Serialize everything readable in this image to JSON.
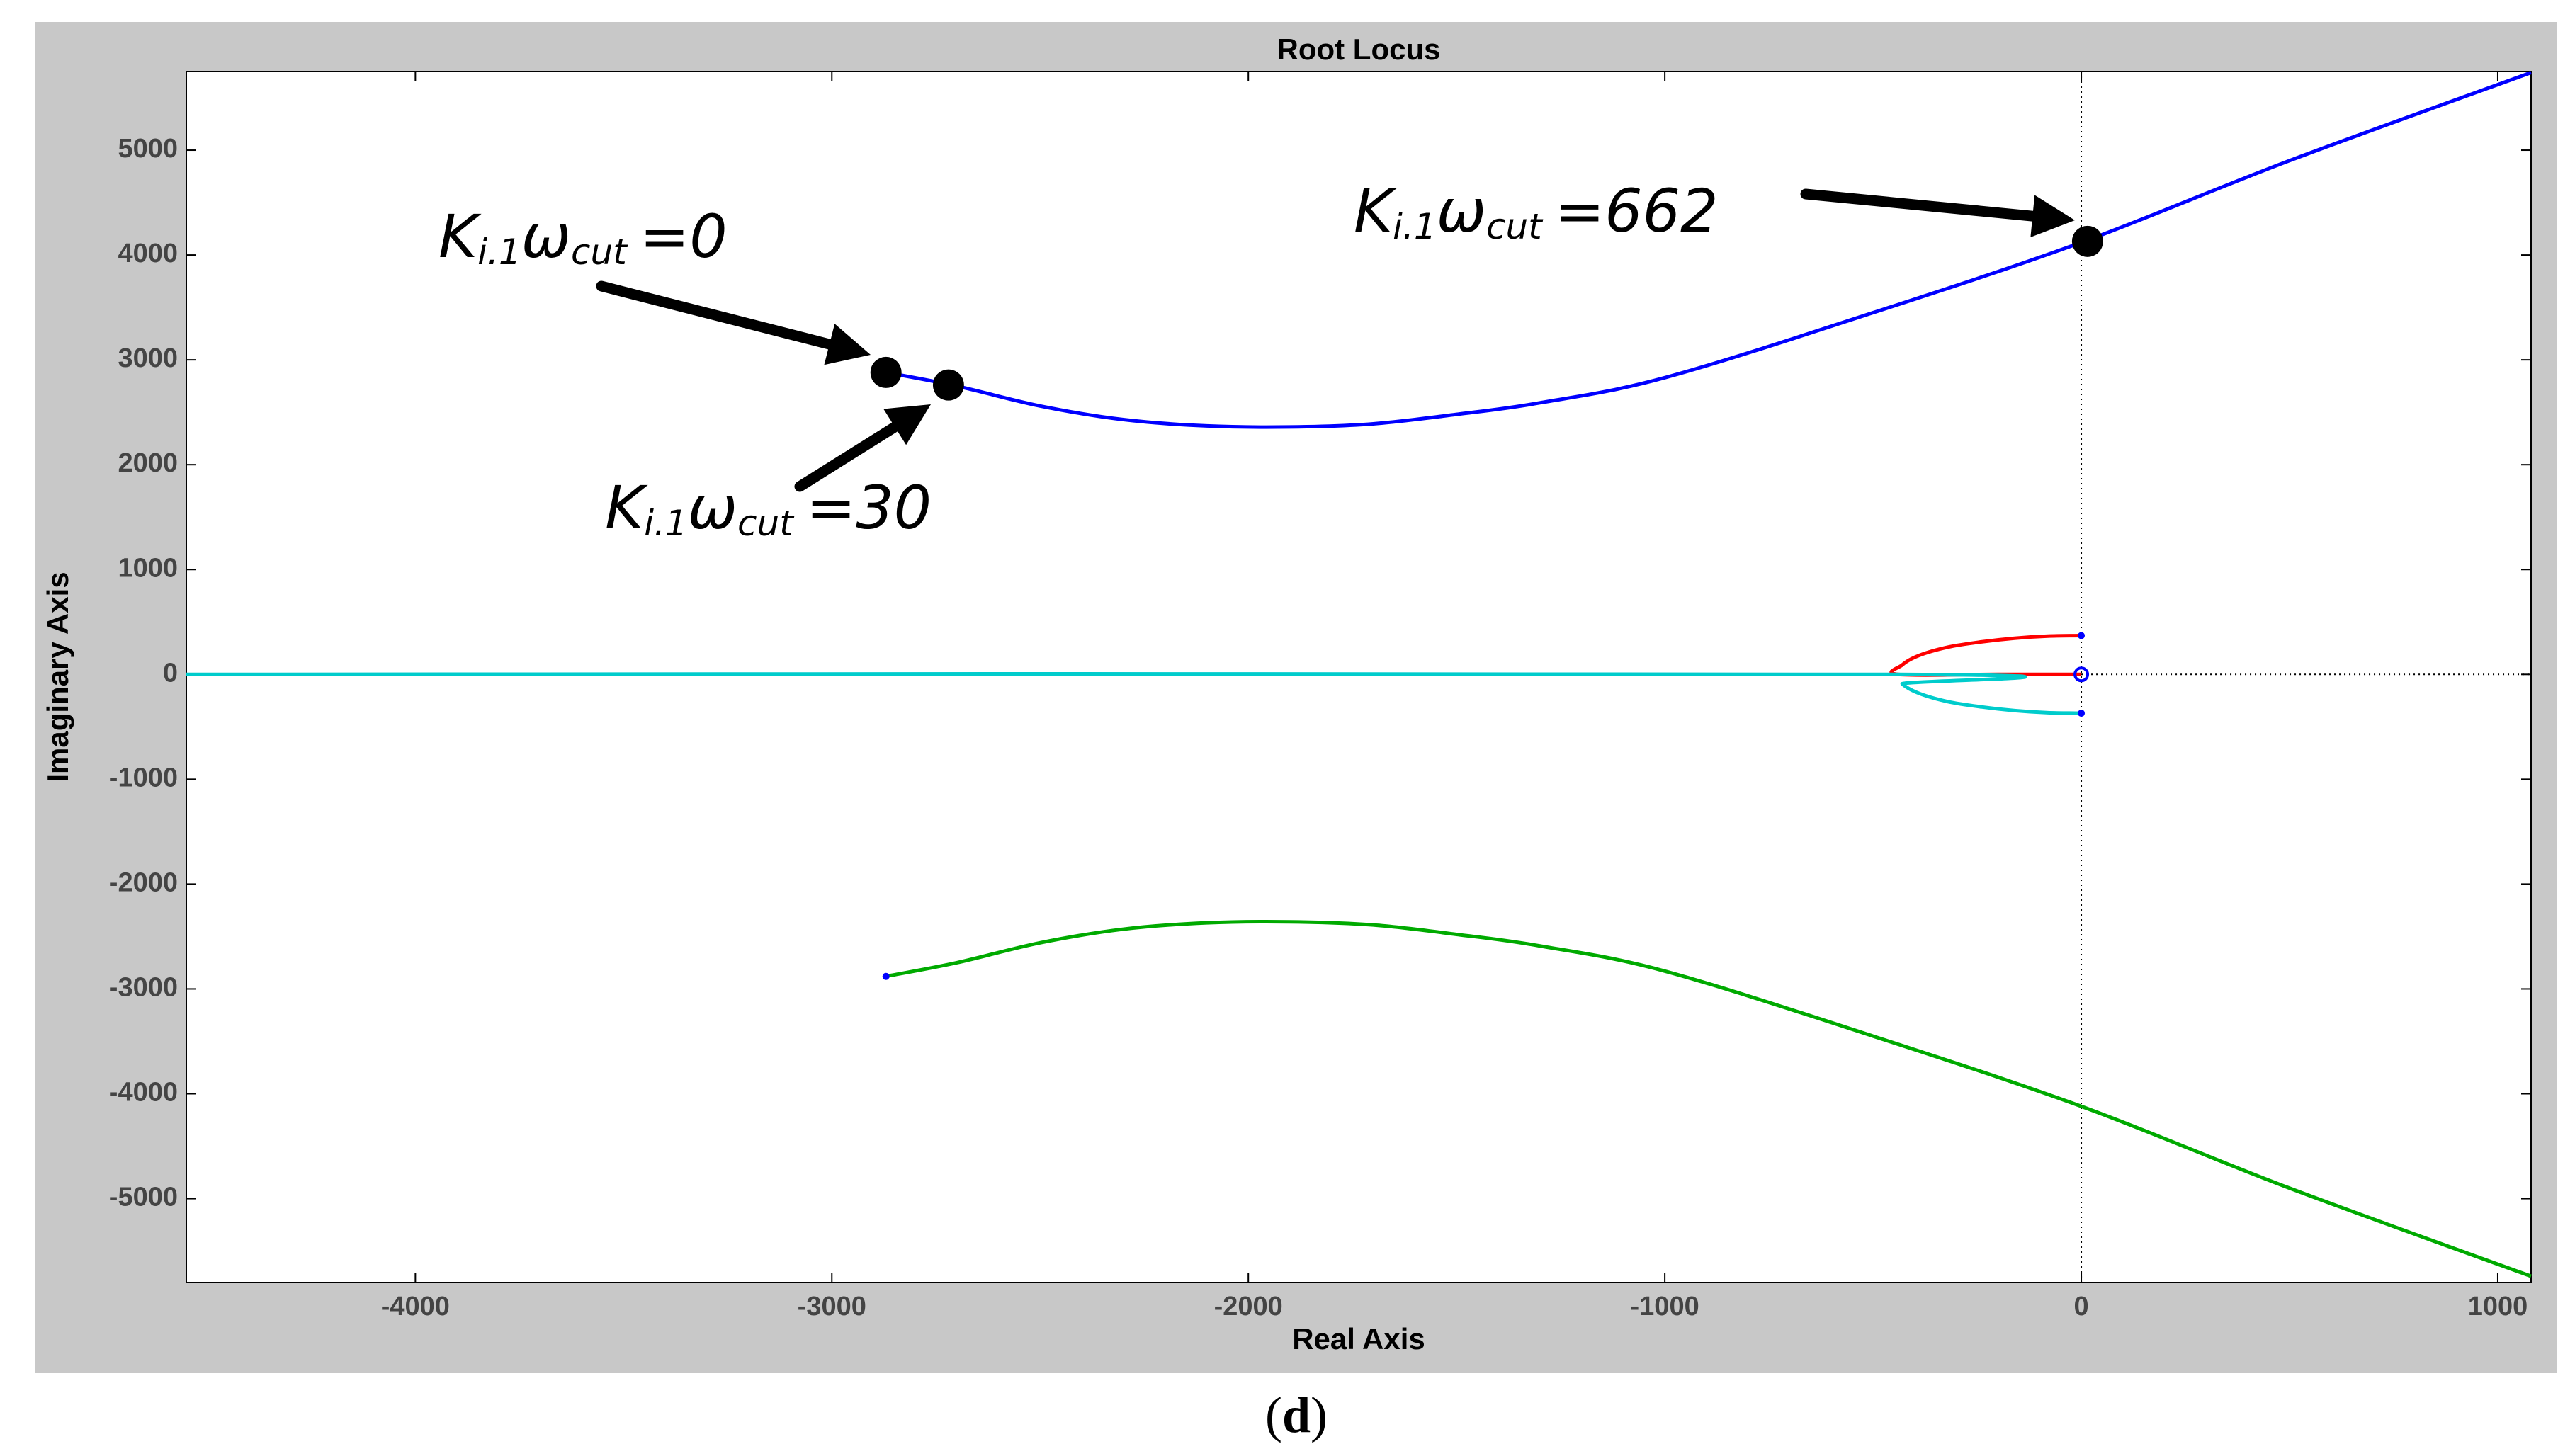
{
  "chart_data": {
    "type": "line",
    "title": "Root Locus",
    "xlabel": "Real Axis",
    "ylabel": "Imaginary Axis",
    "xlim": [
      -4550,
      1080
    ],
    "ylim": [
      -5800,
      5750
    ],
    "x_ticks": [
      -4000,
      -3000,
      -2000,
      -1000,
      0,
      1000
    ],
    "y_ticks": [
      -5000,
      -4000,
      -3000,
      -2000,
      -1000,
      0,
      1000,
      2000,
      3000,
      4000,
      5000
    ],
    "grid": false,
    "series": [
      {
        "color": "#0000ff",
        "points": [
          [
            -2870,
            2880
          ],
          [
            -2700,
            2750
          ],
          [
            -2500,
            2560
          ],
          [
            -2300,
            2430
          ],
          [
            -2100,
            2370
          ],
          [
            -1900,
            2360
          ],
          [
            -1700,
            2390
          ],
          [
            -1500,
            2480
          ],
          [
            -1300,
            2590
          ],
          [
            -1000,
            2830
          ],
          [
            -500,
            3450
          ],
          [
            0,
            4120
          ],
          [
            500,
            4900
          ],
          [
            1080,
            5740
          ]
        ]
      },
      {
        "color": "#00aa00",
        "points": [
          [
            -2870,
            -2880
          ],
          [
            -2700,
            -2750
          ],
          [
            -2500,
            -2560
          ],
          [
            -2300,
            -2430
          ],
          [
            -2100,
            -2370
          ],
          [
            -1900,
            -2360
          ],
          [
            -1700,
            -2390
          ],
          [
            -1500,
            -2480
          ],
          [
            -1300,
            -2590
          ],
          [
            -1000,
            -2830
          ],
          [
            -500,
            -3450
          ],
          [
            0,
            -4120
          ],
          [
            500,
            -4900
          ],
          [
            1080,
            -5740
          ]
        ]
      },
      {
        "color": "#ff0000",
        "points": [
          [
            0,
            370
          ],
          [
            -80,
            365
          ],
          [
            -160,
            345
          ],
          [
            -240,
            310
          ],
          [
            -320,
            260
          ],
          [
            -390,
            180
          ],
          [
            -430,
            90
          ],
          [
            -440,
            0
          ],
          [
            -200,
            0
          ],
          [
            0,
            0
          ]
        ]
      },
      {
        "color": "#00cccc",
        "points": [
          [
            0,
            -370
          ],
          [
            -80,
            -365
          ],
          [
            -160,
            -345
          ],
          [
            -240,
            -310
          ],
          [
            -320,
            -260
          ],
          [
            -390,
            -180
          ],
          [
            -430,
            -90
          ],
          [
            -440,
            0
          ],
          [
            -4550,
            0
          ]
        ]
      }
    ],
    "markers": [
      {
        "x": -2870,
        "y": 2880
      },
      {
        "x": -2720,
        "y": 2760
      },
      {
        "x": 15,
        "y": 4130
      }
    ],
    "annotations": [
      {
        "label": "K",
        "subscript": "i.1",
        "omega": "ω",
        "omega_sub": "cut",
        "value": "=0",
        "x": -2870,
        "y": 2880
      },
      {
        "label": "K",
        "subscript": "i.1",
        "omega": "ω",
        "omega_sub": "cut",
        "value": "=30",
        "x": -2720,
        "y": 2760
      },
      {
        "label": "K",
        "subscript": "i.1",
        "omega": "ω",
        "omega_sub": "cut",
        "value": "=662",
        "x": 15,
        "y": 4130
      }
    ]
  },
  "caption": {
    "open": "(",
    "letter": "d",
    "close": ")"
  }
}
